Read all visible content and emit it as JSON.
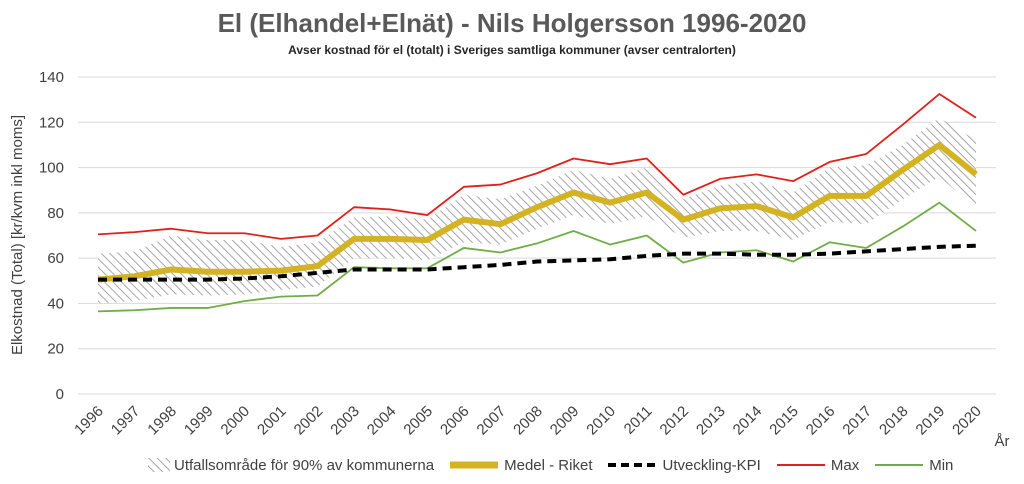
{
  "title": "El (Elhandel+Elnät) - Nils Holgersson 1996-2020",
  "subtitle": "Avser kostnad för el (totalt) i Sveriges samtliga kommuner (avser centralorten)",
  "chart_data": {
    "type": "line",
    "title": "El (Elhandel+Elnät) - Nils Holgersson 1996-2020",
    "subtitle": "Avser kostnad för el (totalt) i Sveriges samtliga kommuner (avser centralorten)",
    "xlabel": "År",
    "ylabel": "Elkostnad (Total) [kr/kvm inkl moms]",
    "ylim": [
      0,
      140
    ],
    "yticks": [
      0,
      20,
      40,
      60,
      80,
      100,
      120,
      140
    ],
    "grid": true,
    "legend_position": "bottom",
    "x": [
      "1996",
      "1997",
      "1998",
      "1999",
      "2000",
      "2001",
      "2002",
      "2003",
      "2004",
      "2005",
      "2006",
      "2007",
      "2008",
      "2009",
      "2010",
      "2011",
      "2012",
      "2013",
      "2014",
      "2015",
      "2016",
      "2017",
      "2018",
      "2019",
      "2020"
    ],
    "band": {
      "name": "Utfallsområde för 90% av kommunerna",
      "lower": [
        40,
        41,
        44,
        43.5,
        44,
        46,
        47.5,
        60,
        60,
        59,
        67,
        66,
        73,
        79,
        75,
        78.5,
        69,
        72,
        72,
        68,
        76,
        75,
        86,
        96,
        82
      ],
      "upper": [
        62,
        63,
        70,
        68,
        68,
        65,
        67,
        78,
        78.5,
        77,
        88,
        86,
        92,
        99,
        95,
        100,
        86,
        92,
        94,
        89,
        100,
        101,
        110,
        122,
        112
      ]
    },
    "series": [
      {
        "name": "Medel - Riket",
        "color": "#d4b323",
        "style": "thick",
        "values": [
          50.5,
          52,
          55,
          54,
          54,
          54.5,
          56.5,
          68.5,
          68.5,
          68,
          77,
          75,
          82.5,
          89,
          84.5,
          89,
          77,
          82,
          83,
          78,
          87.5,
          87.5,
          99,
          110,
          97
        ]
      },
      {
        "name": "Utveckling-KPI",
        "color": "#000000",
        "style": "dashed",
        "values": [
          50.5,
          50.5,
          50.5,
          50.5,
          51,
          52,
          53.5,
          55,
          55,
          55,
          56,
          57,
          58.5,
          59,
          59.5,
          61,
          62,
          62,
          61.5,
          61.5,
          62,
          63,
          64,
          65,
          65.5
        ]
      },
      {
        "name": "Max",
        "color": "#e0201b",
        "style": "thin",
        "values": [
          70.5,
          71.5,
          73,
          71,
          71,
          68.5,
          70,
          82.5,
          81.5,
          79,
          91.5,
          92.5,
          97.5,
          104,
          101.5,
          104,
          88,
          95,
          97,
          94,
          102.5,
          106,
          119,
          132.5,
          122
        ]
      },
      {
        "name": "Min",
        "color": "#70ad47",
        "style": "thin",
        "values": [
          36.5,
          37,
          38,
          38,
          41,
          43,
          43.5,
          56,
          55.5,
          55.5,
          64.5,
          62.5,
          66.5,
          72,
          66,
          70,
          58,
          62.5,
          63.5,
          58.5,
          67,
          64.5,
          74,
          84.5,
          72
        ]
      }
    ]
  }
}
